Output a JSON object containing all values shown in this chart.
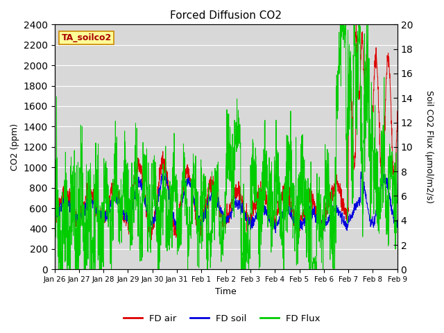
{
  "title": "Forced Diffusion CO2",
  "xlabel": "Time",
  "ylabel_left": "CO2 (ppm)",
  "ylabel_right": "Soil CO2 Flux (μmol/m2/s)",
  "annotation": "TA_soilco2",
  "ylim_left": [
    0,
    2400
  ],
  "ylim_right": [
    0,
    20
  ],
  "yticks_left": [
    0,
    200,
    400,
    600,
    800,
    1000,
    1200,
    1400,
    1600,
    1800,
    2000,
    2200,
    2400
  ],
  "yticks_right": [
    0,
    2,
    4,
    6,
    8,
    10,
    12,
    14,
    16,
    18,
    20
  ],
  "xtick_labels": [
    "Jan 26",
    "Jan 27",
    "Jan 28",
    "Jan 29",
    "Jan 30",
    "Jan 31",
    "Feb 1",
    "Feb 2",
    "Feb 3",
    "Feb 4",
    "Feb 5",
    "Feb 6",
    "Feb 7",
    "Feb 8",
    "Feb 9"
  ],
  "color_air": "#dd0000",
  "color_soil": "#0000dd",
  "color_flux": "#00cc00",
  "legend_labels": [
    "FD air",
    "FD soil",
    "FD Flux"
  ],
  "bg_color": "#d8d8d8",
  "grid_color": "#ffffff",
  "annotation_bg": "#ffff99",
  "annotation_border": "#cc8800",
  "n_days": 14,
  "n_points": 2000
}
